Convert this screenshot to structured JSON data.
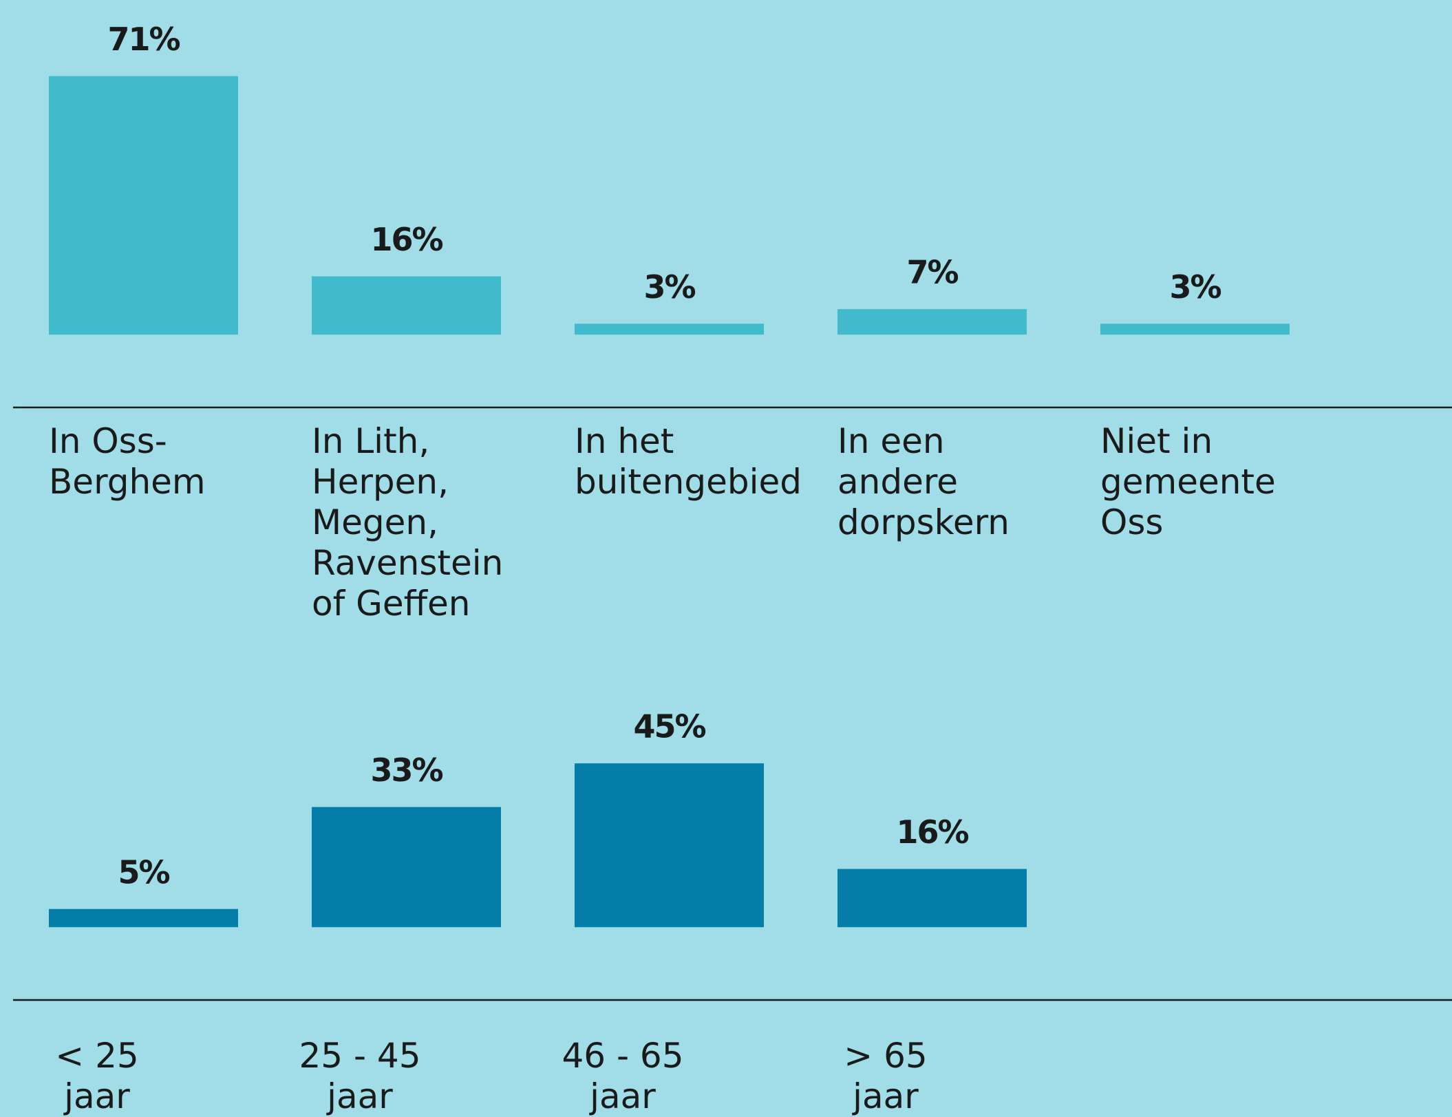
{
  "chart_data": [
    {
      "type": "bar",
      "color": "#41bacb",
      "categories": [
        "In Oss-\nBerghem",
        "In Lith,\nHerpen,\nMegen,\nRavenstein\nof Geffen",
        "In het\nbuitengebied",
        "In een\nandere\ndorpskern",
        "Niet in\ngemeente\nOss"
      ],
      "values": [
        71,
        16,
        3,
        7,
        3
      ],
      "value_labels": [
        "71%",
        "16%",
        "3%",
        "7%",
        "3%"
      ],
      "ylim": [
        -20,
        80
      ]
    },
    {
      "type": "bar",
      "color": "#047ea8",
      "categories": [
        "< 25\njaar",
        "25 - 45\njaar",
        "46 - 65\njaar",
        "> 65\njaar"
      ],
      "values": [
        5,
        33,
        45,
        16
      ],
      "value_labels": [
        "5%",
        "33%",
        "45%",
        "16%"
      ],
      "ylim": [
        -20,
        80
      ]
    }
  ]
}
